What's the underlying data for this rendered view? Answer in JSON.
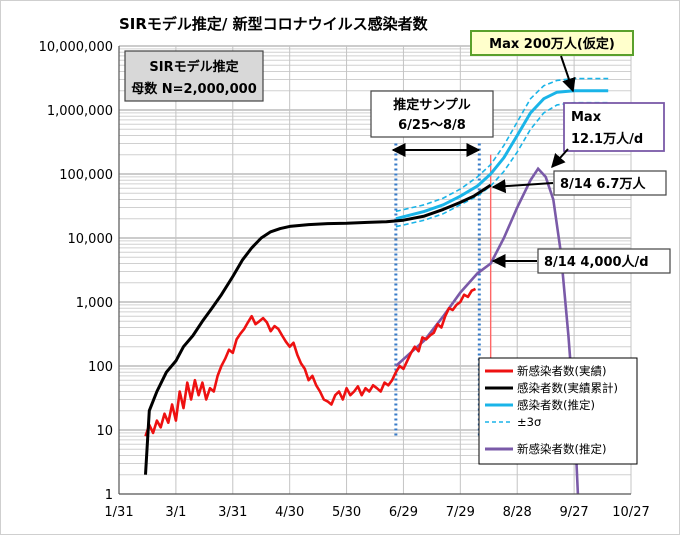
{
  "chart_data": {
    "type": "line",
    "title": "SIRモデル推定/ 新型コロナウイルス感染者数",
    "xlabel": "",
    "ylabel": "",
    "y_scale": "log",
    "ylim": [
      1,
      10000000
    ],
    "xlim": [
      "2020-01-31",
      "2020-10-27"
    ],
    "y_tick_labels": [
      "1",
      "10",
      "100",
      "1,000",
      "10,000",
      "100,000",
      "1,000,000",
      "10,000,000"
    ],
    "x_tick_labels": [
      "1/31",
      "3/1",
      "3/31",
      "4/30",
      "5/30",
      "6/29",
      "7/29",
      "8/28",
      "9/27",
      "10/27"
    ],
    "x_ticks": [
      "2020-01-31",
      "2020-03-01",
      "2020-03-31",
      "2020-04-30",
      "2020-05-30",
      "2020-06-29",
      "2020-07-29",
      "2020-08-28",
      "2020-09-27",
      "2020-10-27"
    ],
    "grid": true,
    "legend_position": "bottom-right",
    "colors": {
      "new_actual": "#ee1111",
      "cum_actual": "#000000",
      "cum_est": "#1ab4e8",
      "sigma": "#1ab4e8",
      "new_est": "#7a5aa8",
      "vline_sample": "#3a7cc8",
      "vline_today": "#ff6666"
    },
    "series": [
      {
        "name": "新感染者数(実績)",
        "key": "new_actual",
        "points": [
          [
            "2020-02-14",
            8
          ],
          [
            "2020-02-16",
            12
          ],
          [
            "2020-02-18",
            9
          ],
          [
            "2020-02-20",
            14
          ],
          [
            "2020-02-22",
            11
          ],
          [
            "2020-02-24",
            18
          ],
          [
            "2020-02-26",
            13
          ],
          [
            "2020-02-28",
            25
          ],
          [
            "2020-03-01",
            14
          ],
          [
            "2020-03-03",
            40
          ],
          [
            "2020-03-05",
            22
          ],
          [
            "2020-03-07",
            55
          ],
          [
            "2020-03-09",
            30
          ],
          [
            "2020-03-11",
            60
          ],
          [
            "2020-03-13",
            35
          ],
          [
            "2020-03-15",
            55
          ],
          [
            "2020-03-17",
            30
          ],
          [
            "2020-03-19",
            45
          ],
          [
            "2020-03-21",
            40
          ],
          [
            "2020-03-23",
            70
          ],
          [
            "2020-03-25",
            100
          ],
          [
            "2020-03-27",
            130
          ],
          [
            "2020-03-29",
            180
          ],
          [
            "2020-03-31",
            160
          ],
          [
            "2020-04-02",
            260
          ],
          [
            "2020-04-04",
            320
          ],
          [
            "2020-04-06",
            380
          ],
          [
            "2020-04-08",
            480
          ],
          [
            "2020-04-10",
            600
          ],
          [
            "2020-04-12",
            450
          ],
          [
            "2020-04-14",
            500
          ],
          [
            "2020-04-16",
            560
          ],
          [
            "2020-04-18",
            480
          ],
          [
            "2020-04-20",
            350
          ],
          [
            "2020-04-22",
            420
          ],
          [
            "2020-04-24",
            380
          ],
          [
            "2020-04-26",
            300
          ],
          [
            "2020-04-28",
            240
          ],
          [
            "2020-04-30",
            200
          ],
          [
            "2020-05-02",
            230
          ],
          [
            "2020-05-04",
            150
          ],
          [
            "2020-05-06",
            110
          ],
          [
            "2020-05-08",
            90
          ],
          [
            "2020-05-10",
            60
          ],
          [
            "2020-05-12",
            70
          ],
          [
            "2020-05-14",
            50
          ],
          [
            "2020-05-16",
            40
          ],
          [
            "2020-05-18",
            30
          ],
          [
            "2020-05-20",
            28
          ],
          [
            "2020-05-22",
            25
          ],
          [
            "2020-05-24",
            35
          ],
          [
            "2020-05-26",
            40
          ],
          [
            "2020-05-28",
            30
          ],
          [
            "2020-05-30",
            45
          ],
          [
            "2020-06-01",
            35
          ],
          [
            "2020-06-03",
            40
          ],
          [
            "2020-06-05",
            48
          ],
          [
            "2020-06-07",
            35
          ],
          [
            "2020-06-09",
            45
          ],
          [
            "2020-06-11",
            40
          ],
          [
            "2020-06-13",
            50
          ],
          [
            "2020-06-15",
            45
          ],
          [
            "2020-06-17",
            40
          ],
          [
            "2020-06-19",
            55
          ],
          [
            "2020-06-21",
            50
          ],
          [
            "2020-06-23",
            60
          ],
          [
            "2020-06-25",
            80
          ],
          [
            "2020-06-27",
            100
          ],
          [
            "2020-06-29",
            90
          ],
          [
            "2020-07-01",
            120
          ],
          [
            "2020-07-03",
            160
          ],
          [
            "2020-07-05",
            200
          ],
          [
            "2020-07-07",
            170
          ],
          [
            "2020-07-09",
            280
          ],
          [
            "2020-07-11",
            260
          ],
          [
            "2020-07-13",
            300
          ],
          [
            "2020-07-15",
            330
          ],
          [
            "2020-07-17",
            450
          ],
          [
            "2020-07-19",
            400
          ],
          [
            "2020-07-21",
            600
          ],
          [
            "2020-07-23",
            800
          ],
          [
            "2020-07-25",
            750
          ],
          [
            "2020-07-27",
            900
          ],
          [
            "2020-07-29",
            1000
          ],
          [
            "2020-07-31",
            1300
          ],
          [
            "2020-08-02",
            1200
          ],
          [
            "2020-08-04",
            1500
          ],
          [
            "2020-08-06",
            1600
          ]
        ]
      },
      {
        "name": "感染者数(実績累計)",
        "key": "cum_actual",
        "points": [
          [
            "2020-02-14",
            2
          ],
          [
            "2020-02-16",
            20
          ],
          [
            "2020-02-20",
            40
          ],
          [
            "2020-02-25",
            80
          ],
          [
            "2020-03-01",
            120
          ],
          [
            "2020-03-05",
            200
          ],
          [
            "2020-03-10",
            300
          ],
          [
            "2020-03-15",
            500
          ],
          [
            "2020-03-20",
            800
          ],
          [
            "2020-03-25",
            1300
          ],
          [
            "2020-03-31",
            2500
          ],
          [
            "2020-04-05",
            4500
          ],
          [
            "2020-04-10",
            7000
          ],
          [
            "2020-04-15",
            10000
          ],
          [
            "2020-04-20",
            12500
          ],
          [
            "2020-04-25",
            14000
          ],
          [
            "2020-04-30",
            15200
          ],
          [
            "2020-05-10",
            16200
          ],
          [
            "2020-05-20",
            16800
          ],
          [
            "2020-05-30",
            17000
          ],
          [
            "2020-06-10",
            17500
          ],
          [
            "2020-06-20",
            18000
          ],
          [
            "2020-06-29",
            19000
          ],
          [
            "2020-07-10",
            22000
          ],
          [
            "2020-07-20",
            28000
          ],
          [
            "2020-07-29",
            36000
          ],
          [
            "2020-08-05",
            45000
          ],
          [
            "2020-08-14",
            67000
          ]
        ]
      },
      {
        "name": "感染者数(推定)",
        "key": "cum_est",
        "points": [
          [
            "2020-06-25",
            20000
          ],
          [
            "2020-07-10",
            26000
          ],
          [
            "2020-07-20",
            33000
          ],
          [
            "2020-07-29",
            45000
          ],
          [
            "2020-08-07",
            65000
          ],
          [
            "2020-08-14",
            100000
          ],
          [
            "2020-08-21",
            180000
          ],
          [
            "2020-08-28",
            400000
          ],
          [
            "2020-09-04",
            900000
          ],
          [
            "2020-09-11",
            1500000
          ],
          [
            "2020-09-18",
            1900000
          ],
          [
            "2020-09-27",
            2000000
          ],
          [
            "2020-10-15",
            2000000
          ]
        ]
      },
      {
        "name": "±3σ",
        "key": "sigma",
        "points_upper": [
          [
            "2020-06-25",
            26000
          ],
          [
            "2020-07-10",
            33000
          ],
          [
            "2020-07-20",
            42000
          ],
          [
            "2020-07-29",
            58000
          ],
          [
            "2020-08-07",
            90000
          ],
          [
            "2020-08-14",
            140000
          ],
          [
            "2020-08-21",
            280000
          ],
          [
            "2020-08-28",
            650000
          ],
          [
            "2020-09-04",
            1500000
          ],
          [
            "2020-09-11",
            2400000
          ],
          [
            "2020-09-18",
            2900000
          ],
          [
            "2020-09-27",
            3100000
          ],
          [
            "2020-10-15",
            3100000
          ]
        ],
        "points_lower": [
          [
            "2020-06-25",
            15000
          ],
          [
            "2020-07-10",
            19000
          ],
          [
            "2020-07-20",
            24000
          ],
          [
            "2020-07-29",
            33000
          ],
          [
            "2020-08-07",
            45000
          ],
          [
            "2020-08-14",
            65000
          ],
          [
            "2020-08-21",
            110000
          ],
          [
            "2020-08-28",
            220000
          ],
          [
            "2020-09-04",
            500000
          ],
          [
            "2020-09-11",
            900000
          ],
          [
            "2020-09-18",
            1200000
          ],
          [
            "2020-09-27",
            1300000
          ],
          [
            "2020-10-15",
            1300000
          ]
        ]
      },
      {
        "name": "新感染者数(推定)",
        "key": "new_est",
        "points": [
          [
            "2020-06-25",
            100
          ],
          [
            "2020-07-10",
            250
          ],
          [
            "2020-07-20",
            600
          ],
          [
            "2020-07-29",
            1400
          ],
          [
            "2020-08-07",
            2800
          ],
          [
            "2020-08-14",
            4000
          ],
          [
            "2020-08-21",
            10000
          ],
          [
            "2020-08-28",
            30000
          ],
          [
            "2020-09-04",
            80000
          ],
          [
            "2020-09-08",
            121000
          ],
          [
            "2020-09-12",
            90000
          ],
          [
            "2020-09-16",
            40000
          ],
          [
            "2020-09-20",
            6000
          ],
          [
            "2020-09-24",
            300
          ],
          [
            "2020-09-27",
            20
          ],
          [
            "2020-09-29",
            1
          ]
        ]
      }
    ],
    "vlines": [
      {
        "x": "2020-06-25",
        "ymin": 8,
        "ymax": 300000,
        "style": "dotted",
        "key": "vline_sample"
      },
      {
        "x": "2020-08-08",
        "ymin": 8,
        "ymax": 300000,
        "style": "dotted",
        "key": "vline_sample"
      },
      {
        "x": "2020-08-14",
        "ymin": 50,
        "ymax": 200000,
        "style": "solid",
        "key": "vline_today"
      }
    ],
    "annotations": {
      "model_box": [
        "SIRモデル推定",
        "母数 N=2,000,000"
      ],
      "sample_box": [
        "推定サンプル",
        "6/25～8/8"
      ],
      "max_total": "Max 200万人(仮定)",
      "max_daily": [
        "Max",
        "12.1万人/d"
      ],
      "cum_today": "8/14  6.7万人",
      "daily_today": "8/14  4,000人/d"
    }
  }
}
